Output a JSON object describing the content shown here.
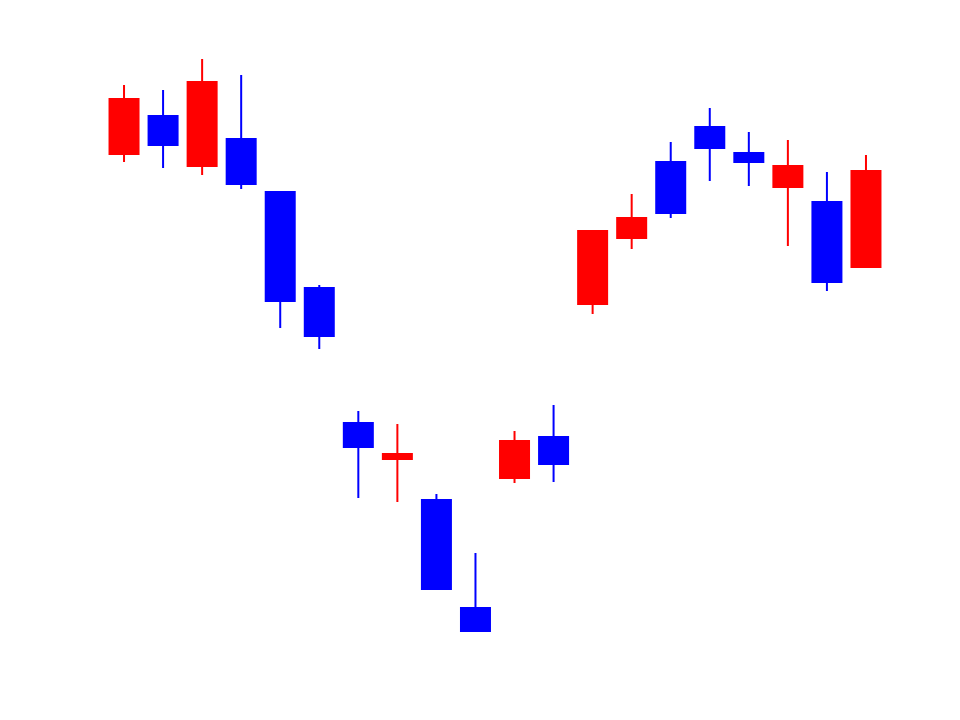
{
  "chart_data": {
    "type": "candlestick",
    "open": [
      565,
      605,
      553,
      582,
      529,
      433,
      298,
      260,
      221,
      113,
      241,
      284,
      415,
      481,
      559,
      594,
      568,
      532,
      519,
      452
    ],
    "high": [
      635,
      630,
      661,
      645,
      529,
      435,
      309,
      296,
      226,
      167,
      289,
      315,
      490,
      526,
      578,
      612,
      588,
      580,
      548,
      565
    ],
    "low": [
      558,
      552,
      545,
      531,
      392,
      371,
      222,
      218,
      130,
      88,
      237,
      238,
      406,
      471,
      502,
      539,
      534,
      474,
      429,
      452
    ],
    "close": [
      622,
      574,
      639,
      535,
      418,
      383,
      272,
      267,
      130,
      88,
      280,
      255,
      490,
      503,
      506,
      571,
      557,
      555,
      437,
      550
    ],
    "up_color": "#ff0000",
    "down_color": "#0000ff",
    "ylim": [
      0,
      720
    ]
  }
}
